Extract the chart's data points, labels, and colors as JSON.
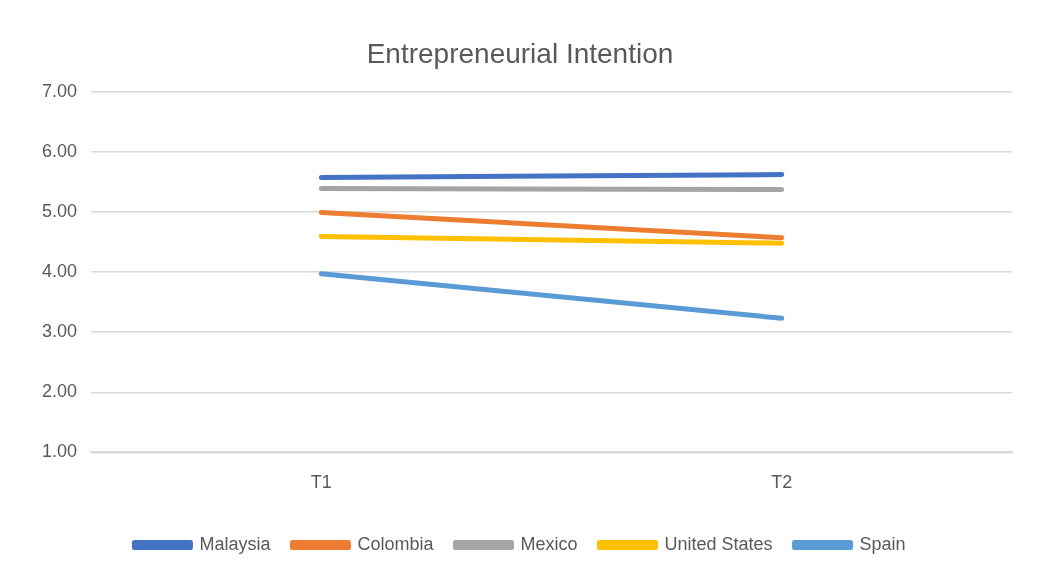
{
  "chart_data": {
    "type": "line",
    "title": "Entrepreneurial Intention",
    "categories": [
      "T1",
      "T2"
    ],
    "series": [
      {
        "name": "Malaysia",
        "color": "#4472c4",
        "values": [
          5.57,
          5.62
        ]
      },
      {
        "name": "Colombia",
        "color": "#ed7d31",
        "values": [
          4.99,
          4.57
        ]
      },
      {
        "name": "Mexico",
        "color": "#a5a5a5",
        "values": [
          5.39,
          5.37
        ]
      },
      {
        "name": "United States",
        "color": "#ffc000",
        "values": [
          4.59,
          4.48
        ]
      },
      {
        "name": "Spain",
        "color": "#5b9bd5",
        "values": [
          3.97,
          3.23
        ]
      }
    ],
    "ylim": [
      1,
      7
    ],
    "yticks": [
      {
        "value": 1,
        "label": "1.00"
      },
      {
        "value": 2,
        "label": "2.00"
      },
      {
        "value": 3,
        "label": "3.00"
      },
      {
        "value": 4,
        "label": "4.00"
      },
      {
        "value": 5,
        "label": "5.00"
      },
      {
        "value": 6,
        "label": "6.00"
      },
      {
        "value": 7,
        "label": "7.00"
      }
    ],
    "grid": "y",
    "legend": "bottom",
    "marker": "none",
    "line_style": "solid"
  }
}
